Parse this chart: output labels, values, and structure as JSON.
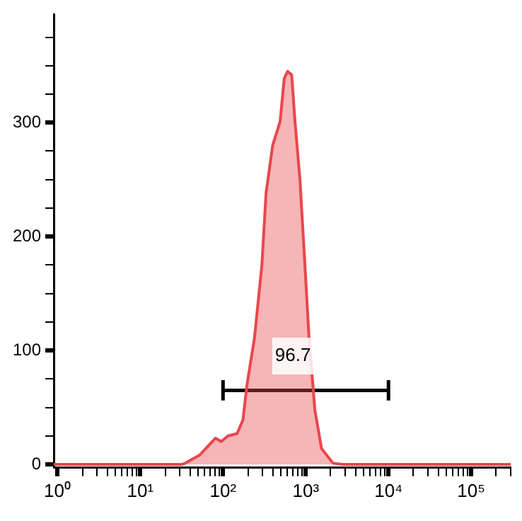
{
  "chart_data": {
    "type": "area",
    "x": [
      0.9,
      32,
      35,
      52,
      81,
      95,
      115,
      148,
      174,
      195,
      240,
      295,
      331,
      398,
      490,
      550,
      603,
      676,
      741,
      851,
      977,
      1096,
      1288,
      1549,
      2138,
      2800,
      300000
    ],
    "series": [
      {
        "color": "#e8474c",
        "values": [
          0,
          0,
          1,
          8,
          23,
          20,
          25,
          27,
          39,
          70,
          111,
          175,
          238,
          280,
          301,
          339,
          345,
          342,
          301,
          250,
          175,
          111,
          48,
          14,
          1,
          0,
          0
        ]
      },
      {
        "type": "line",
        "color": "#000000",
        "x": [
          100,
          10000
        ],
        "values": [
          65,
          65
        ],
        "errors": [
          9,
          9
        ]
      }
    ],
    "annotations": [
      {
        "text": "96.7",
        "x": 700,
        "y": 95
      }
    ],
    "xlim": [
      0.9,
      300000
    ],
    "ylim": [
      -3,
      395
    ],
    "log": "x",
    "xticks": [
      {
        "value": 1,
        "label": "10⁰"
      },
      {
        "value": 2,
        "label": null
      },
      {
        "value": 3,
        "label": null
      },
      {
        "value": 4,
        "label": null
      },
      {
        "value": 5,
        "label": null
      },
      {
        "value": 6,
        "label": null
      },
      {
        "value": 7,
        "label": null
      },
      {
        "value": 8,
        "label": null
      },
      {
        "value": 9,
        "label": null
      },
      {
        "value": 10,
        "label": "10¹"
      },
      {
        "value": 20,
        "label": null
      },
      {
        "value": 30,
        "label": null
      },
      {
        "value": 40,
        "label": null
      },
      {
        "value": 50,
        "label": null
      },
      {
        "value": 60,
        "label": null
      },
      {
        "value": 70,
        "label": null
      },
      {
        "value": 80,
        "label": null
      },
      {
        "value": 90,
        "label": null
      },
      {
        "value": 100,
        "label": "10²"
      },
      {
        "value": 200,
        "label": null
      },
      {
        "value": 300,
        "label": null
      },
      {
        "value": 400,
        "label": null
      },
      {
        "value": 500,
        "label": null
      },
      {
        "value": 600,
        "label": null
      },
      {
        "value": 700,
        "label": null
      },
      {
        "value": 800,
        "label": null
      },
      {
        "value": 900,
        "label": null
      },
      {
        "value": 1000,
        "label": "10³"
      },
      {
        "value": 2000,
        "label": null
      },
      {
        "value": 3000,
        "label": null
      },
      {
        "value": 4000,
        "label": null
      },
      {
        "value": 5000,
        "label": null
      },
      {
        "value": 6000,
        "label": null
      },
      {
        "value": 7000,
        "label": null
      },
      {
        "value": 8000,
        "label": null
      },
      {
        "value": 9000,
        "label": null
      },
      {
        "value": 10000,
        "label": "10⁴"
      },
      {
        "value": 20000,
        "label": null
      },
      {
        "value": 30000,
        "label": null
      },
      {
        "value": 40000,
        "label": null
      },
      {
        "value": 50000,
        "label": null
      },
      {
        "value": 60000,
        "label": null
      },
      {
        "value": 70000,
        "label": null
      },
      {
        "value": 80000,
        "label": null
      },
      {
        "value": 90000,
        "label": null
      },
      {
        "value": 100000,
        "label": "10⁵"
      },
      {
        "value": 200000,
        "label": null
      },
      {
        "value": 300000,
        "label": null
      }
    ],
    "yticks": [
      0,
      {
        "value": 25,
        "label": null
      },
      {
        "value": 50,
        "label": null
      },
      {
        "value": 75,
        "label": null
      },
      100,
      {
        "value": 125,
        "label": null
      },
      {
        "value": 150,
        "label": null
      },
      {
        "value": 175,
        "label": null
      },
      200,
      {
        "value": 225,
        "label": null
      },
      {
        "value": 250,
        "label": null
      },
      {
        "value": 275,
        "label": null
      },
      300,
      {
        "value": 325,
        "label": null
      },
      {
        "value": 350,
        "label": null
      },
      {
        "value": 375,
        "label": null
      }
    ],
    "grid": false,
    "legend": false
  }
}
